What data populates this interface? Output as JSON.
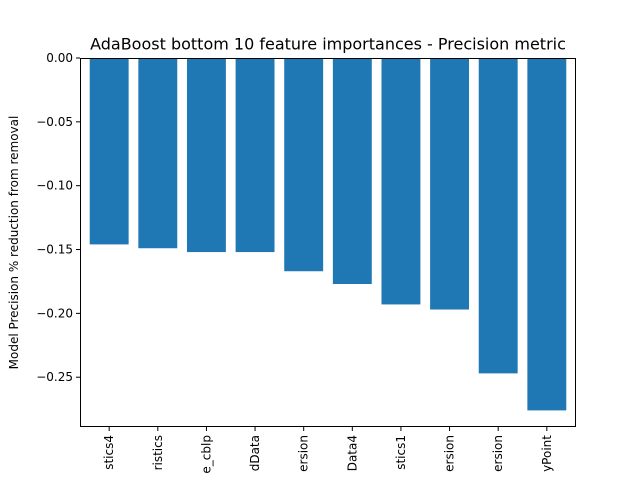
{
  "chart_data": {
    "type": "bar",
    "title": "AdaBoost bottom 10 feature importances - Precision metric",
    "xlabel": "",
    "ylabel": "Model Precision % reduction from removal",
    "categories": [
      "stics4",
      "ristics",
      "e_cblp",
      "dData",
      "ersion",
      "Data4",
      "stics1",
      "ersion",
      "ersion",
      "yPoint"
    ],
    "values": [
      -0.146,
      -0.149,
      -0.152,
      -0.152,
      -0.167,
      -0.177,
      -0.193,
      -0.197,
      -0.247,
      -0.276
    ],
    "ylim": [
      -0.289,
      0.0
    ],
    "yticks": [
      0.0,
      -0.05,
      -0.1,
      -0.15,
      -0.2,
      -0.25
    ],
    "ytick_labels": [
      "0.00",
      "−0.05",
      "−0.10",
      "−0.15",
      "−0.20",
      "−0.25"
    ],
    "grid": false,
    "bar_color": "#1f77b4"
  }
}
